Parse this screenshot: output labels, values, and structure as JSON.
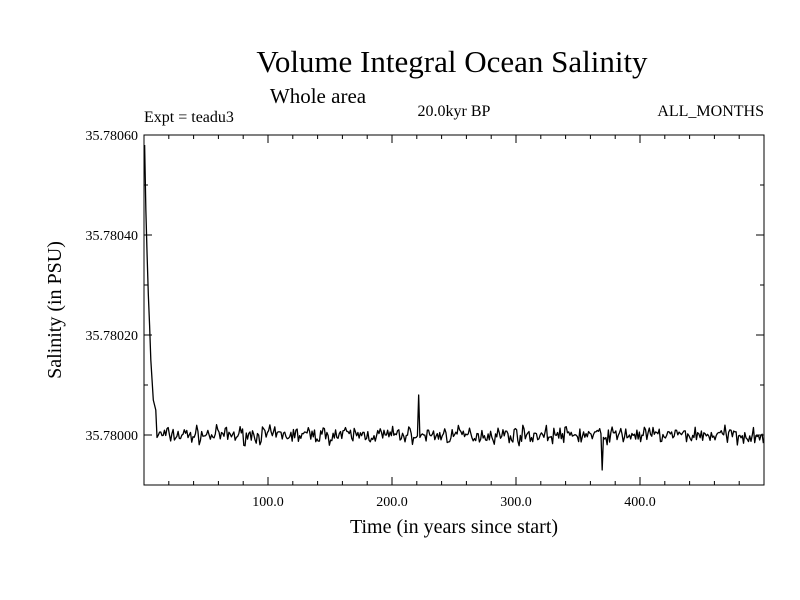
{
  "chart_data": {
    "type": "line",
    "title": "Volume Integral Ocean Salinity",
    "subtitle": "Whole area",
    "annotations": {
      "experiment": "Expt = teadu3",
      "period": "20.0kyr BP",
      "months": "ALL_MONTHS"
    },
    "xlabel": "Time (in years since start)",
    "ylabel": "Salinity (in PSU)",
    "xlim": [
      0,
      500
    ],
    "ylim": [
      35.7799,
      35.7806
    ],
    "xticks": [
      100,
      200,
      300,
      400
    ],
    "xtick_labels": [
      "100.0",
      "200.0",
      "300.0",
      "400.0"
    ],
    "yticks": [
      35.78,
      35.7802,
      35.7804,
      35.7806
    ],
    "ytick_labels": [
      "35.78000",
      "35.78020",
      "35.78040",
      "35.78060"
    ],
    "series": [
      {
        "name": "Salinity",
        "x_start": 0.5,
        "x_step": 1,
        "spinup_values": [
          35.78058,
          35.78045,
          35.78036,
          35.78028,
          35.78022,
          35.78015,
          35.78011,
          35.78007,
          35.78006,
          35.78005
        ],
        "equilibrium_mean": 35.78,
        "noise_amplitude": 2.5e-05,
        "noise_seed": 7,
        "points": 500,
        "notable_min": {
          "x": 369,
          "y": 35.77993
        },
        "notable_max": {
          "x": 221,
          "y": 35.78008
        }
      }
    ],
    "grid": false
  }
}
